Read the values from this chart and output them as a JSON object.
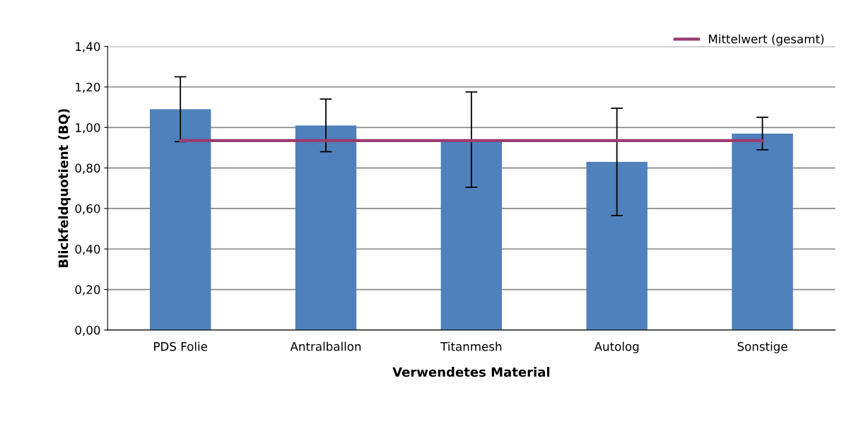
{
  "chart_data": {
    "type": "bar",
    "xlabel": "Verwendetes Material",
    "ylabel": "Blickfeldquotient (BQ)",
    "categories": [
      "PDS Folie",
      "Antralballon",
      "Titanmesh",
      "Autolog",
      "Sonstige"
    ],
    "series": [
      {
        "color": "#4f81bd",
        "values": [
          1.09,
          1.01,
          0.94,
          0.83,
          0.97
        ],
        "errors": [
          0.16,
          0.13,
          0.235,
          0.265,
          0.08
        ]
      },
      {
        "type": "line",
        "name": "Mittelwert (gesamt)",
        "color": "#9b3b6e",
        "values": [
          0.935,
          0.935,
          0.935,
          0.935,
          0.935
        ]
      }
    ],
    "ylim": [
      0,
      1.4
    ],
    "yticks": [
      {
        "value": 0,
        "label": "0,00"
      },
      {
        "value": 0.2,
        "label": "0,20"
      },
      {
        "value": 0.4,
        "label": "0,40"
      },
      {
        "value": 0.6,
        "label": "0,60"
      },
      {
        "value": 0.8,
        "label": "0,80"
      },
      {
        "value": 1.0,
        "label": "1,00"
      },
      {
        "value": 1.2,
        "label": "1,20"
      },
      {
        "value": 1.4,
        "label": "1,40"
      }
    ],
    "grid": "y",
    "legend": "top right"
  }
}
